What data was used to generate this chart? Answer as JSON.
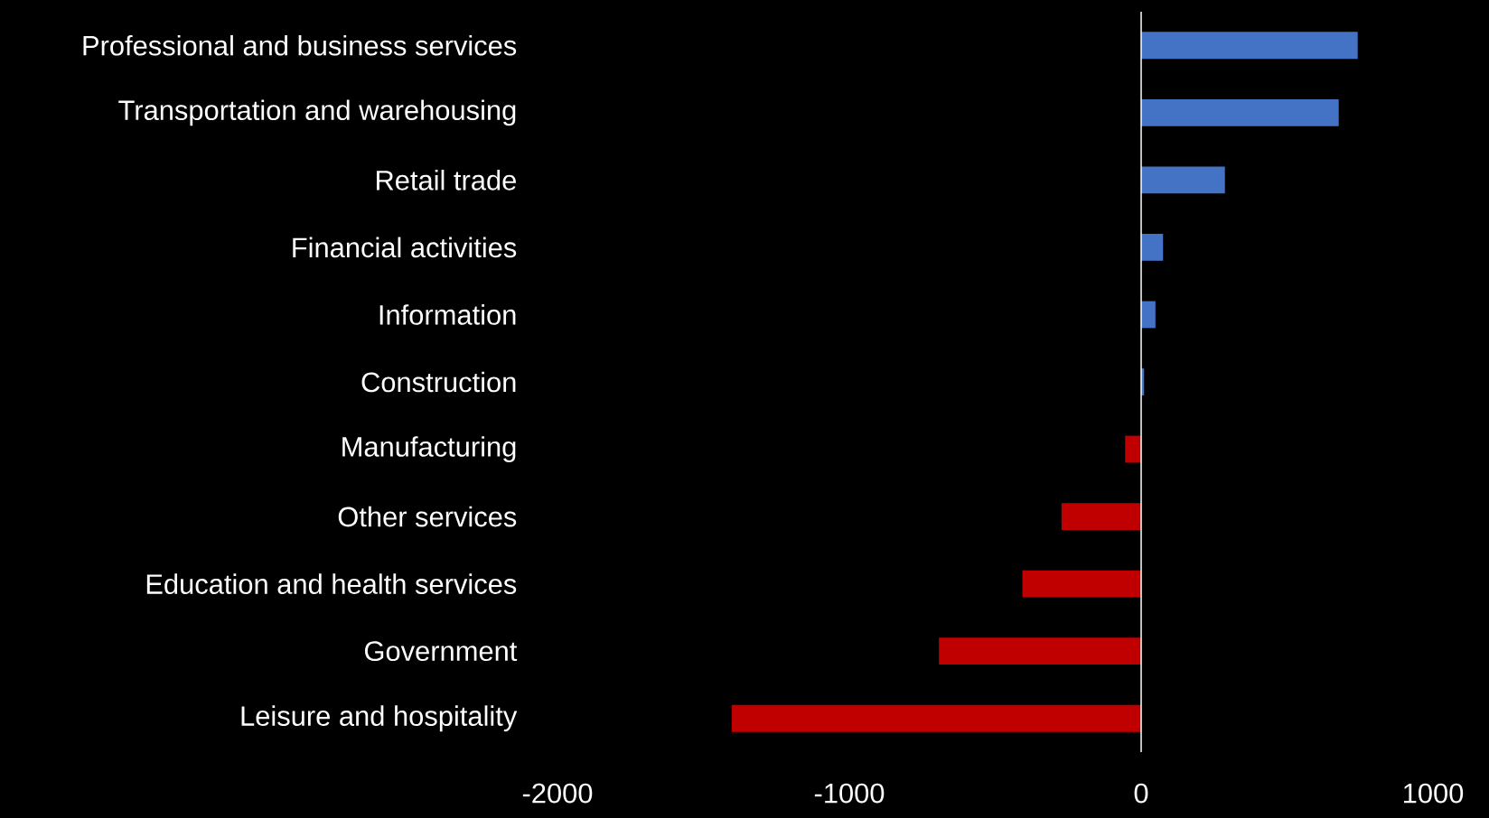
{
  "chart_data": {
    "type": "bar",
    "orientation": "horizontal",
    "categories": [
      "Professional and business services",
      "Transportation and warehousing",
      "Retail trade",
      "Financial activities",
      "Information",
      "Construction",
      "Manufacturing",
      "Other services",
      "Education and health services",
      "Government",
      "Leisure and hospitality"
    ],
    "values": [
      742,
      677,
      287,
      75,
      49,
      10,
      -55,
      -273,
      -407,
      -693,
      -1403
    ],
    "colors": [
      "#4472c4",
      "#4472c4",
      "#4472c4",
      "#4472c4",
      "#4472c4",
      "#4472c4",
      "#c00000",
      "#c00000",
      "#c00000",
      "#c00000",
      "#c00000"
    ],
    "xlim": [
      -2000,
      1000
    ],
    "xticks": [
      -2000,
      -1000,
      0,
      1000
    ]
  }
}
